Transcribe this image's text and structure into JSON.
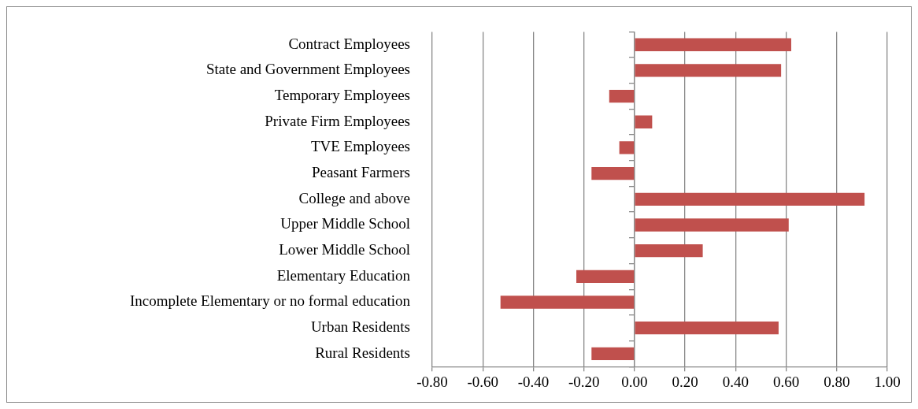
{
  "chart_data": {
    "type": "bar",
    "orientation": "horizontal",
    "categories": [
      "Contract Employees",
      "State and Government Employees",
      "Temporary Employees",
      "Private Firm Employees",
      "TVE Employees",
      "Peasant Farmers",
      "College and above",
      "Upper Middle School",
      "Lower Middle School",
      "Elementary Education",
      "Incomplete Elementary or no formal education",
      "Urban Residents",
      "Rural Residents"
    ],
    "values": [
      0.62,
      0.58,
      -0.1,
      0.07,
      -0.06,
      -0.17,
      0.91,
      0.61,
      0.27,
      -0.23,
      -0.53,
      0.57,
      -0.17
    ],
    "color": "#c0504d",
    "xlim": [
      -0.8,
      1.0
    ],
    "xticks": [
      {
        "value": -0.8,
        "label": "-0.80"
      },
      {
        "value": -0.6,
        "label": "-0.60"
      },
      {
        "value": -0.4,
        "label": "-0.40"
      },
      {
        "value": -0.2,
        "label": "-0.20"
      },
      {
        "value": 0,
        "label": "0.00"
      },
      {
        "value": 0.2,
        "label": "0.20"
      },
      {
        "value": 0.4,
        "label": "0.40"
      },
      {
        "value": 0.6,
        "label": "0.60"
      },
      {
        "value": 0.8,
        "label": "0.80"
      },
      {
        "value": 1.0,
        "label": "1.00"
      }
    ],
    "grid": "x",
    "legend": false
  }
}
